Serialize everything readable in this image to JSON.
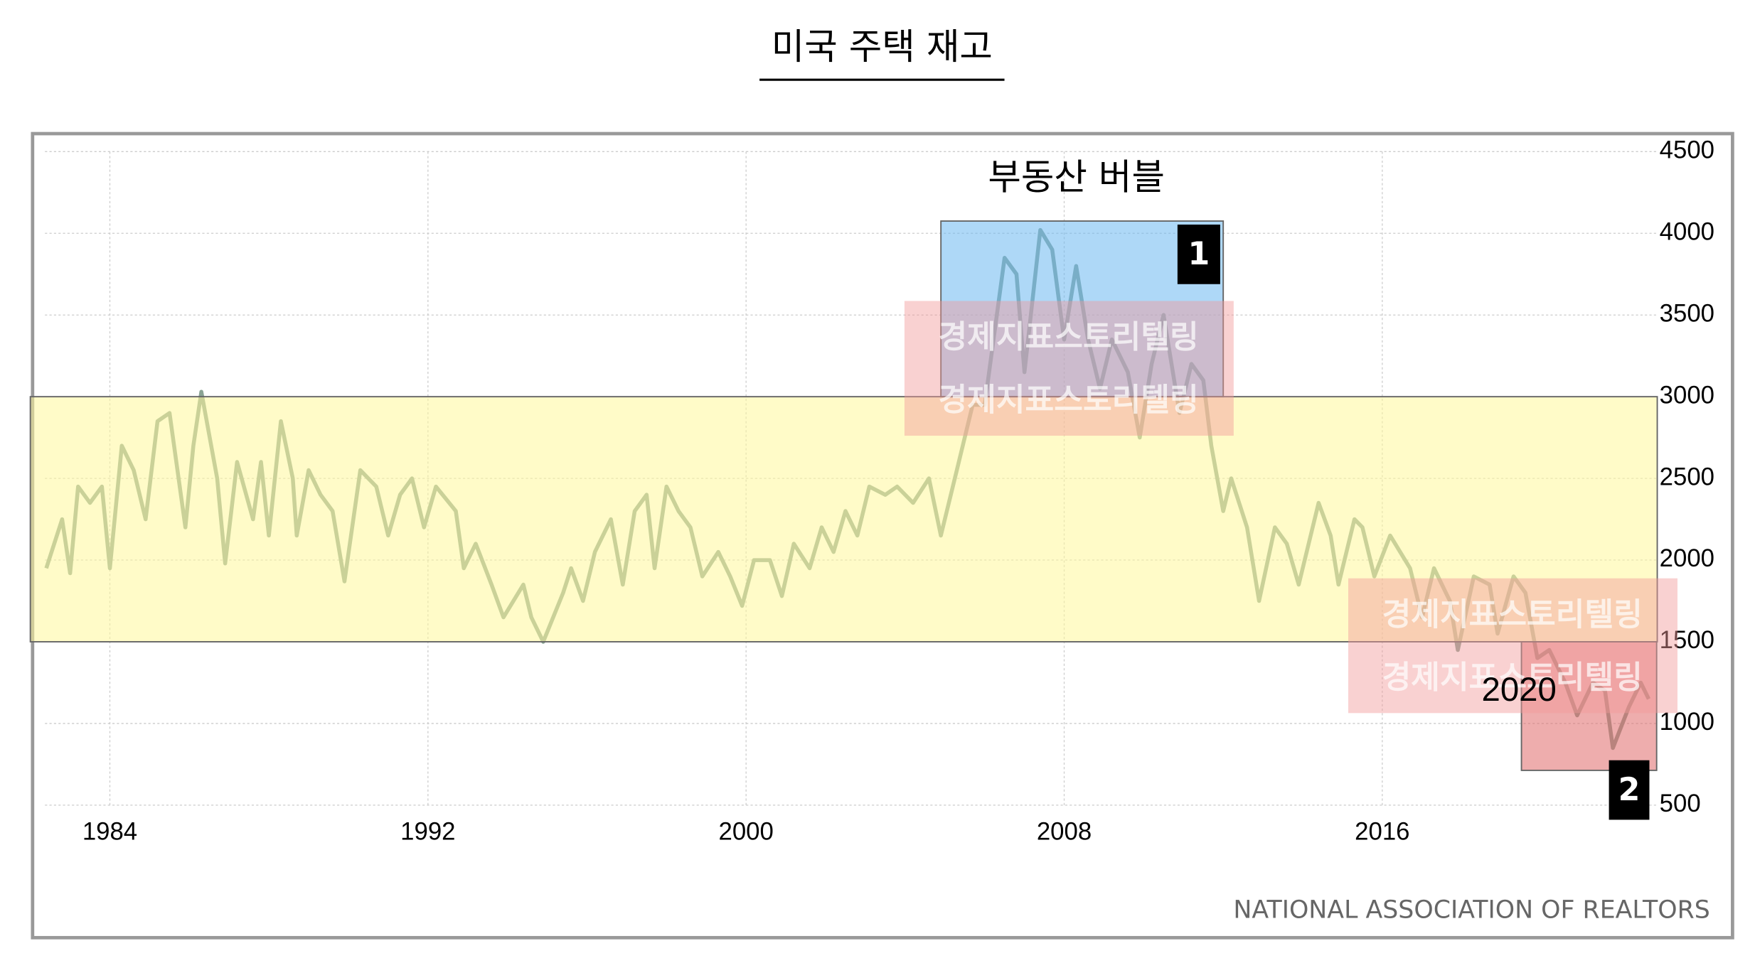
{
  "chart_data": {
    "type": "line",
    "title": "미국 주택 재고",
    "annotation": "부동산 버블",
    "source": "NATIONAL ASSOCIATION OF REALTORS",
    "watermark": "경제지표스토리텔링",
    "markers": [
      {
        "label": "1"
      },
      {
        "label": "2"
      },
      {
        "label": "2020"
      }
    ],
    "highlights": [
      {
        "xlim": [
          1982,
          2023
        ],
        "ylim": [
          1500,
          3000
        ],
        "color": "#fff79a"
      },
      {
        "xlim": [
          2004.9,
          2012
        ],
        "ylim": [
          3000,
          4075
        ],
        "color": "#6cb8f0"
      },
      {
        "xlim": [
          2019.5,
          2022.9
        ],
        "ylim": [
          713,
          1500
        ],
        "color": "#e06a6a"
      }
    ],
    "xlim": [
      1982,
      2023
    ],
    "ylim": [
      500,
      4500
    ],
    "xticks": [
      1984,
      1992,
      2000,
      2008,
      2016
    ],
    "yticks": [
      500,
      1000,
      1500,
      2000,
      2500,
      3000,
      3500,
      4000,
      4500
    ],
    "grid": true,
    "series": [
      {
        "color": "#8aa394",
        "x": [
          1982.4,
          1982.8,
          1983.0,
          1983.2,
          1983.5,
          1983.8,
          1984.0,
          1984.3,
          1984.6,
          1984.9,
          1985.2,
          1985.5,
          1985.9,
          1986.1,
          1986.3,
          1986.7,
          1986.9,
          1987.2,
          1987.6,
          1987.8,
          1988.0,
          1988.3,
          1988.6,
          1988.7,
          1989.0,
          1989.3,
          1989.6,
          1989.9,
          1990.3,
          1990.7,
          1991.0,
          1991.3,
          1991.6,
          1991.9,
          1992.2,
          1992.7,
          1992.9,
          1993.2,
          1993.6,
          1993.9,
          1994.4,
          1994.6,
          1994.9,
          1995.4,
          1995.6,
          1995.9,
          1996.2,
          1996.6,
          1996.9,
          1997.2,
          1997.5,
          1997.7,
          1998.0,
          1998.3,
          1998.6,
          1998.9,
          1999.3,
          1999.6,
          1999.9,
          2000.2,
          2000.6,
          2000.9,
          2001.2,
          2001.6,
          2001.9,
          2002.2,
          2002.5,
          2002.8,
          2003.1,
          2003.5,
          2003.8,
          2004.2,
          2004.6,
          2004.9,
          2005.3,
          2005.7,
          2006.0,
          2006.5,
          2006.8,
          2007.0,
          2007.4,
          2007.7,
          2008.0,
          2008.3,
          2008.6,
          2008.9,
          2009.2,
          2009.6,
          2009.9,
          2010.2,
          2010.5,
          2010.9,
          2011.2,
          2011.5,
          2011.7,
          2012.0,
          2012.2,
          2012.6,
          2012.9,
          2013.3,
          2013.6,
          2013.9,
          2014.4,
          2014.7,
          2014.9,
          2015.3,
          2015.5,
          2015.8,
          2016.2,
          2016.7,
          2017.0,
          2017.3,
          2017.7,
          2017.9,
          2018.3,
          2018.7,
          2018.9,
          2019.3,
          2019.6,
          2019.9,
          2020.2,
          2020.6,
          2020.9,
          2021.3,
          2021.6,
          2021.8,
          2022.2,
          2022.5,
          2022.7
        ],
        "values": [
          1950,
          2250,
          1920,
          2450,
          2350,
          2450,
          1950,
          2700,
          2550,
          2250,
          2850,
          2900,
          2200,
          2700,
          3030,
          2500,
          1980,
          2600,
          2250,
          2600,
          2150,
          2850,
          2500,
          2150,
          2550,
          2400,
          2300,
          1870,
          2550,
          2450,
          2150,
          2400,
          2500,
          2200,
          2450,
          2300,
          1950,
          2100,
          1850,
          1650,
          1850,
          1650,
          1500,
          1800,
          1950,
          1750,
          2050,
          2250,
          1850,
          2300,
          2400,
          1950,
          2450,
          2300,
          2200,
          1900,
          2050,
          1900,
          1720,
          2000,
          2000,
          1780,
          2100,
          1950,
          2200,
          2050,
          2300,
          2150,
          2450,
          2400,
          2450,
          2350,
          2500,
          2150,
          2550,
          2950,
          2950,
          3850,
          3750,
          3150,
          4020,
          3900,
          3350,
          3800,
          3350,
          3050,
          3350,
          3150,
          2750,
          3200,
          3500,
          2900,
          3200,
          3100,
          2700,
          2300,
          2500,
          2200,
          1750,
          2200,
          2100,
          1850,
          2350,
          2150,
          1850,
          2250,
          2200,
          1900,
          2150,
          1950,
          1650,
          1950,
          1750,
          1450,
          1900,
          1850,
          1550,
          1900,
          1800,
          1400,
          1450,
          1250,
          1050,
          1250,
          1200,
          850,
          1100,
          1250,
          1150
        ]
      }
    ]
  }
}
